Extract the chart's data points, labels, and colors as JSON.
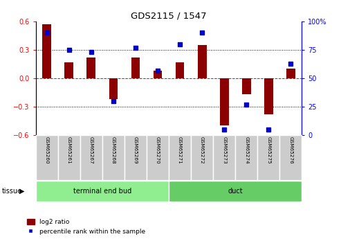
{
  "title": "GDS2115 / 1547",
  "samples": [
    "GSM65260",
    "GSM65261",
    "GSM65267",
    "GSM65268",
    "GSM65269",
    "GSM65270",
    "GSM65271",
    "GSM65272",
    "GSM65273",
    "GSM65274",
    "GSM65275",
    "GSM65276"
  ],
  "log2_ratio": [
    0.57,
    0.17,
    0.22,
    -0.22,
    0.22,
    0.08,
    0.17,
    0.35,
    -0.5,
    -0.17,
    -0.38,
    0.1
  ],
  "percentile_rank": [
    90,
    75,
    73,
    30,
    77,
    57,
    80,
    90,
    5,
    27,
    5,
    63
  ],
  "groups": [
    {
      "label": "terminal end bud",
      "start": 0,
      "end": 6,
      "color": "#90ee90"
    },
    {
      "label": "duct",
      "start": 6,
      "end": 12,
      "color": "#66cc66"
    }
  ],
  "bar_color": "#8B0000",
  "dot_color": "#0000cc",
  "ylim_left": [
    -0.6,
    0.6
  ],
  "ylim_right": [
    0,
    100
  ],
  "yticks_left": [
    -0.6,
    -0.3,
    0.0,
    0.3,
    0.6
  ],
  "yticks_right": [
    0,
    25,
    50,
    75,
    100
  ],
  "dotted_hlines": [
    -0.3,
    0.3
  ],
  "tissue_label": "tissue",
  "legend_log2": "log2 ratio",
  "legend_pct": "percentile rank within the sample",
  "fig_width": 4.93,
  "fig_height": 3.45,
  "dpi": 100
}
